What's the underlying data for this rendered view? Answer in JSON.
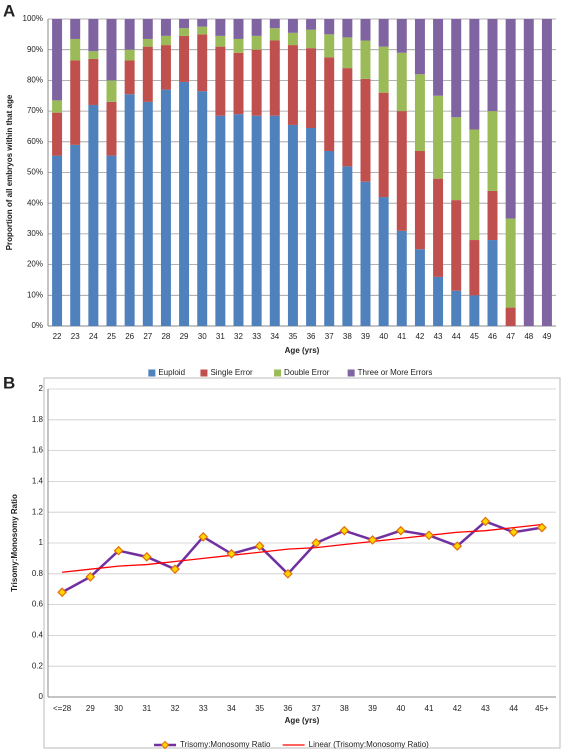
{
  "chart_data": [
    {
      "type": "bar",
      "stacked": true,
      "panel": "A",
      "x_label": "Age (yrs)",
      "y_label": "Proportion of all embryos within that age",
      "categories": [
        "22",
        "23",
        "24",
        "25",
        "26",
        "27",
        "28",
        "29",
        "30",
        "31",
        "32",
        "33",
        "34",
        "35",
        "36",
        "37",
        "38",
        "39",
        "40",
        "41",
        "42",
        "43",
        "44",
        "45",
        "46",
        "47",
        "48",
        "49"
      ],
      "series": [
        {
          "name": "Euploid",
          "color": "#4f81bd",
          "values": [
            55.5,
            59,
            72,
            55.5,
            75.5,
            73,
            77,
            79.5,
            76.5,
            68.5,
            69,
            68.5,
            68.5,
            65.5,
            64.5,
            57,
            52,
            47,
            42,
            31,
            25,
            16,
            11.5,
            10,
            28,
            0,
            0,
            0
          ]
        },
        {
          "name": "Single Error",
          "color": "#c0504d",
          "values": [
            14,
            27.5,
            15,
            17.5,
            11,
            18,
            14.5,
            15,
            18.5,
            22.5,
            20,
            21.5,
            24.5,
            26,
            26,
            30.5,
            32,
            33.5,
            34,
            39,
            32,
            32,
            29.5,
            18,
            16,
            6,
            0,
            0
          ]
        },
        {
          "name": "Double Error",
          "color": "#9bbb59",
          "values": [
            4,
            7,
            2.5,
            7,
            3.5,
            2.5,
            3,
            2.5,
            2.5,
            3.5,
            4.5,
            4.5,
            4,
            4,
            6,
            7.5,
            10,
            12.5,
            15,
            19,
            25,
            27,
            27,
            36,
            26,
            29,
            0,
            0
          ]
        },
        {
          "name": "Three or More Errors",
          "color": "#8064a2",
          "values": [
            26.5,
            6.5,
            10.5,
            20,
            10,
            6.5,
            5.5,
            3,
            2.5,
            5.5,
            6.5,
            5.5,
            3,
            4.5,
            3.5,
            5,
            6,
            7,
            9,
            11,
            18,
            25,
            32,
            36,
            30,
            65,
            100,
            100
          ]
        }
      ],
      "ylim": [
        0,
        100
      ],
      "yticks": [
        {
          "value": 0,
          "label": "0%"
        },
        {
          "value": 10,
          "label": "10%"
        },
        {
          "value": 20,
          "label": "20%"
        },
        {
          "value": 30,
          "label": "30%"
        },
        {
          "value": 40,
          "label": "40%"
        },
        {
          "value": 50,
          "label": "50%"
        },
        {
          "value": 60,
          "label": "60%"
        },
        {
          "value": 70,
          "label": "70%"
        },
        {
          "value": 80,
          "label": "80%"
        },
        {
          "value": 90,
          "label": "90%"
        },
        {
          "value": 100,
          "label": "100%"
        }
      ],
      "grid": true
    },
    {
      "type": "line",
      "panel": "B",
      "x_label": "Age (yrs)",
      "y_label": "Trisomy:Monosomy Ratio",
      "categories": [
        "<=28",
        "29",
        "30",
        "31",
        "32",
        "33",
        "34",
        "35",
        "36",
        "37",
        "38",
        "39",
        "40",
        "41",
        "42",
        "43",
        "44",
        "45+"
      ],
      "series": [
        {
          "name": "Trisomy:Monosomy Ratio",
          "color": "#7030a0",
          "marker_color": "#ffd700",
          "marker_edge": "#e36c09",
          "values": [
            0.68,
            0.78,
            0.95,
            0.91,
            0.83,
            1.04,
            0.93,
            0.98,
            0.8,
            1.0,
            1.08,
            1.02,
            1.08,
            1.05,
            0.98,
            1.14,
            1.07,
            1.1
          ]
        },
        {
          "name": "Linear (Trisomy:Monosomy Ratio)",
          "color": "#ff0000",
          "values": [
            0.81,
            0.83,
            0.85,
            0.86,
            0.88,
            0.9,
            0.92,
            0.94,
            0.96,
            0.97,
            0.99,
            1.01,
            1.03,
            1.05,
            1.07,
            1.08,
            1.1,
            1.12
          ]
        }
      ],
      "ylim": [
        0,
        2
      ],
      "yticks": [
        0,
        0.2,
        0.4,
        0.6,
        0.8,
        1,
        1.2,
        1.4,
        1.6,
        1.8,
        2
      ],
      "grid": true
    }
  ]
}
